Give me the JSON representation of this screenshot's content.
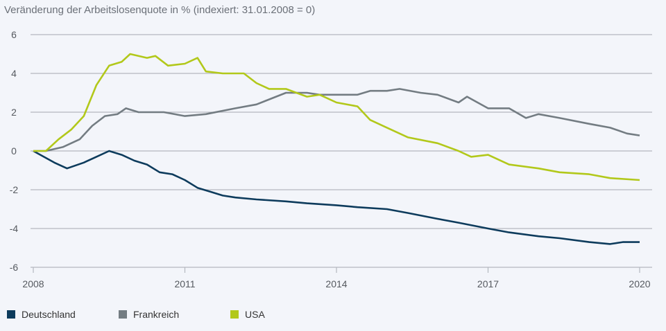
{
  "chart_data": {
    "type": "line",
    "title": "Veränderung der Arbeitslosenquote in % (indexiert: 31.01.2008 = 0)",
    "xlabel": "",
    "ylabel": "",
    "xlim": [
      "2008-01",
      "2020-01"
    ],
    "ylim": [
      -6,
      6
    ],
    "x_ticks": [
      "2008",
      "2011",
      "2014",
      "2017",
      "2020"
    ],
    "y_ticks": [
      "6",
      "4",
      "2",
      "0",
      "-2",
      "-4",
      "-6"
    ],
    "grid": true,
    "legend_position": "bottom-left",
    "series": [
      {
        "name": "Deutschland",
        "color": "#0d3b5c",
        "points": [
          [
            "2008-01",
            0
          ],
          [
            "2008-06",
            -0.6
          ],
          [
            "2008-09",
            -0.9
          ],
          [
            "2009-01",
            -0.6
          ],
          [
            "2009-04",
            -0.3
          ],
          [
            "2009-07",
            0
          ],
          [
            "2009-10",
            -0.2
          ],
          [
            "2010-01",
            -0.5
          ],
          [
            "2010-04",
            -0.7
          ],
          [
            "2010-07",
            -1.1
          ],
          [
            "2010-10",
            -1.2
          ],
          [
            "2011-01",
            -1.5
          ],
          [
            "2011-04",
            -1.9
          ],
          [
            "2011-07",
            -2.1
          ],
          [
            "2011-10",
            -2.3
          ],
          [
            "2012-01",
            -2.4
          ],
          [
            "2012-06",
            -2.5
          ],
          [
            "2013-01",
            -2.6
          ],
          [
            "2013-06",
            -2.7
          ],
          [
            "2014-01",
            -2.8
          ],
          [
            "2014-06",
            -2.9
          ],
          [
            "2015-01",
            -3.0
          ],
          [
            "2015-06",
            -3.2
          ],
          [
            "2016-01",
            -3.5
          ],
          [
            "2016-06",
            -3.7
          ],
          [
            "2017-01",
            -4.0
          ],
          [
            "2017-06",
            -4.2
          ],
          [
            "2018-01",
            -4.4
          ],
          [
            "2018-06",
            -4.5
          ],
          [
            "2019-01",
            -4.7
          ],
          [
            "2019-06",
            -4.8
          ],
          [
            "2019-09",
            -4.7
          ],
          [
            "2020-01",
            -4.7
          ]
        ]
      },
      {
        "name": "Frankreich",
        "color": "#737c82",
        "points": [
          [
            "2008-01",
            0
          ],
          [
            "2008-04",
            0
          ],
          [
            "2008-08",
            0.2
          ],
          [
            "2008-12",
            0.6
          ],
          [
            "2009-03",
            1.3
          ],
          [
            "2009-06",
            1.8
          ],
          [
            "2009-09",
            1.9
          ],
          [
            "2009-11",
            2.2
          ],
          [
            "2010-02",
            2.0
          ],
          [
            "2010-08",
            2.0
          ],
          [
            "2011-01",
            1.8
          ],
          [
            "2011-06",
            1.9
          ],
          [
            "2012-01",
            2.2
          ],
          [
            "2012-06",
            2.4
          ],
          [
            "2013-01",
            3.0
          ],
          [
            "2013-06",
            3.0
          ],
          [
            "2013-09",
            2.9
          ],
          [
            "2014-06",
            2.9
          ],
          [
            "2014-09",
            3.1
          ],
          [
            "2015-01",
            3.1
          ],
          [
            "2015-04",
            3.2
          ],
          [
            "2015-09",
            3.0
          ],
          [
            "2016-01",
            2.9
          ],
          [
            "2016-06",
            2.5
          ],
          [
            "2016-08",
            2.8
          ],
          [
            "2017-01",
            2.2
          ],
          [
            "2017-06",
            2.2
          ],
          [
            "2017-10",
            1.7
          ],
          [
            "2018-01",
            1.9
          ],
          [
            "2018-06",
            1.7
          ],
          [
            "2019-01",
            1.4
          ],
          [
            "2019-06",
            1.2
          ],
          [
            "2019-10",
            0.9
          ],
          [
            "2020-01",
            0.8
          ]
        ]
      },
      {
        "name": "USA",
        "color": "#b2c81a",
        "points": [
          [
            "2008-01",
            0
          ],
          [
            "2008-04",
            0
          ],
          [
            "2008-07",
            0.6
          ],
          [
            "2008-10",
            1.1
          ],
          [
            "2009-01",
            1.8
          ],
          [
            "2009-04",
            3.4
          ],
          [
            "2009-07",
            4.4
          ],
          [
            "2009-10",
            4.6
          ],
          [
            "2009-12",
            5.0
          ],
          [
            "2010-04",
            4.8
          ],
          [
            "2010-06",
            4.9
          ],
          [
            "2010-09",
            4.4
          ],
          [
            "2011-01",
            4.5
          ],
          [
            "2011-04",
            4.8
          ],
          [
            "2011-06",
            4.1
          ],
          [
            "2011-10",
            4.0
          ],
          [
            "2012-03",
            4.0
          ],
          [
            "2012-06",
            3.5
          ],
          [
            "2012-09",
            3.2
          ],
          [
            "2013-01",
            3.2
          ],
          [
            "2013-06",
            2.8
          ],
          [
            "2013-09",
            2.9
          ],
          [
            "2014-01",
            2.5
          ],
          [
            "2014-06",
            2.3
          ],
          [
            "2014-09",
            1.6
          ],
          [
            "2015-01",
            1.2
          ],
          [
            "2015-06",
            0.7
          ],
          [
            "2016-01",
            0.4
          ],
          [
            "2016-06",
            0.0
          ],
          [
            "2016-09",
            -0.3
          ],
          [
            "2017-01",
            -0.2
          ],
          [
            "2017-06",
            -0.7
          ],
          [
            "2018-01",
            -0.9
          ],
          [
            "2018-06",
            -1.1
          ],
          [
            "2019-01",
            -1.2
          ],
          [
            "2019-06",
            -1.4
          ],
          [
            "2020-01",
            -1.5
          ]
        ]
      }
    ]
  }
}
